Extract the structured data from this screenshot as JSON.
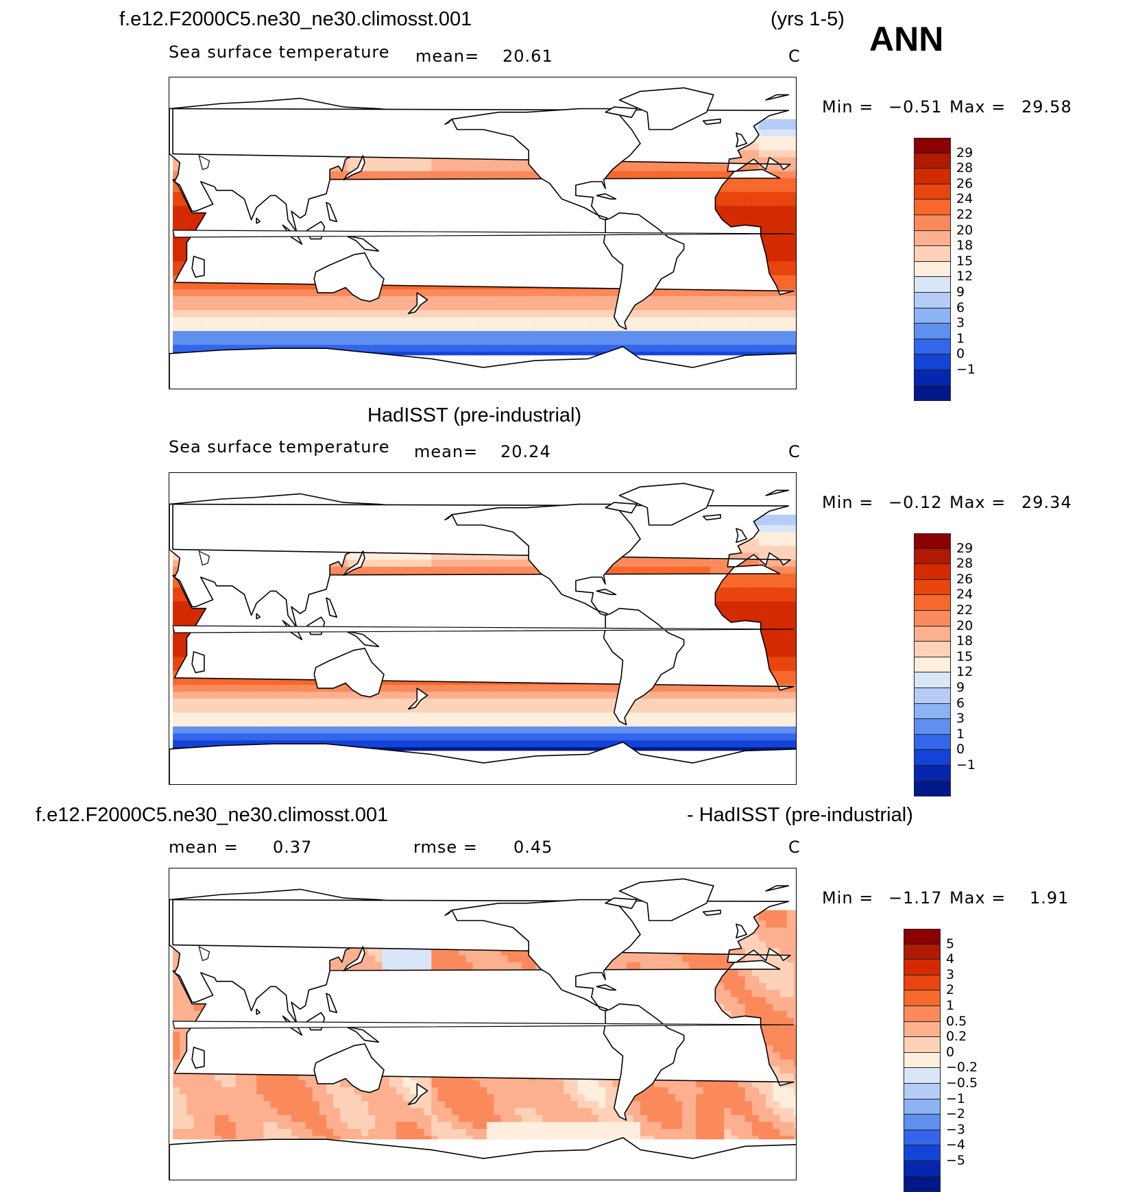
{
  "header": {
    "case_name": "f.e12.F2000C5.ne30_ne30.climosst.001",
    "years": "(yrs 1-5)",
    "season": "ANN"
  },
  "panels": [
    {
      "id": "model",
      "variable": "Sea surface temperature",
      "mean_label": "mean=",
      "mean_value": "20.61",
      "units": "C",
      "min_label": "Min =",
      "min_value": "−0.51",
      "max_label": "Max =",
      "max_value": "29.58",
      "levels": [
        "29",
        "28",
        "26",
        "24",
        "22",
        "20",
        "18",
        "15",
        "12",
        "9",
        "6",
        "3",
        "1",
        "0",
        "−1"
      ],
      "colors": [
        "#8b0000",
        "#b01a00",
        "#d42a00",
        "#e8450f",
        "#f7682d",
        "#fa8a5c",
        "#fcb08f",
        "#fdd2b9",
        "#fdeedd",
        "#d8e6f8",
        "#b5cdf6",
        "#8db3f5",
        "#5f90f0",
        "#3466ec",
        "#1443d8",
        "#0527b0",
        "#001889"
      ]
    },
    {
      "id": "obs",
      "title": "HadISST (pre-industrial)",
      "variable": "Sea surface temperature",
      "mean_label": "mean=",
      "mean_value": "20.24",
      "units": "C",
      "min_label": "Min =",
      "min_value": "−0.12",
      "max_label": "Max =",
      "max_value": "29.34",
      "levels": [
        "29",
        "28",
        "26",
        "24",
        "22",
        "20",
        "18",
        "15",
        "12",
        "9",
        "6",
        "3",
        "1",
        "0",
        "−1"
      ],
      "colors": [
        "#8b0000",
        "#b01a00",
        "#d42a00",
        "#e8450f",
        "#f7682d",
        "#fa8a5c",
        "#fcb08f",
        "#fdd2b9",
        "#fdeedd",
        "#d8e6f8",
        "#b5cdf6",
        "#8db3f5",
        "#5f90f0",
        "#3466ec",
        "#1443d8",
        "#0527b0",
        "#001889"
      ]
    },
    {
      "id": "diff",
      "title_left": "f.e12.F2000C5.ne30_ne30.climosst.001",
      "title_right": "- HadISST (pre-industrial)",
      "mean_label": "mean =",
      "mean_value": "0.37",
      "rmse_label": "rmse =",
      "rmse_value": "0.45",
      "units": "C",
      "min_label": "Min =",
      "min_value": "−1.17",
      "max_label": "Max =",
      "max_value": "1.91",
      "levels": [
        "5",
        "4",
        "3",
        "2",
        "1",
        "0.5",
        "0.2",
        "0",
        "−0.2",
        "−0.5",
        "−1",
        "−2",
        "−3",
        "−4",
        "−5"
      ],
      "colors": [
        "#8b0000",
        "#b01a00",
        "#d42a00",
        "#e8450f",
        "#f7682d",
        "#fa8a5c",
        "#fcb08f",
        "#fdd2b9",
        "#fdeedd",
        "#d8e6f8",
        "#b5cdf6",
        "#8db3f5",
        "#5f90f0",
        "#3466ec",
        "#1443d8",
        "#0527b0",
        "#001889"
      ]
    }
  ]
}
